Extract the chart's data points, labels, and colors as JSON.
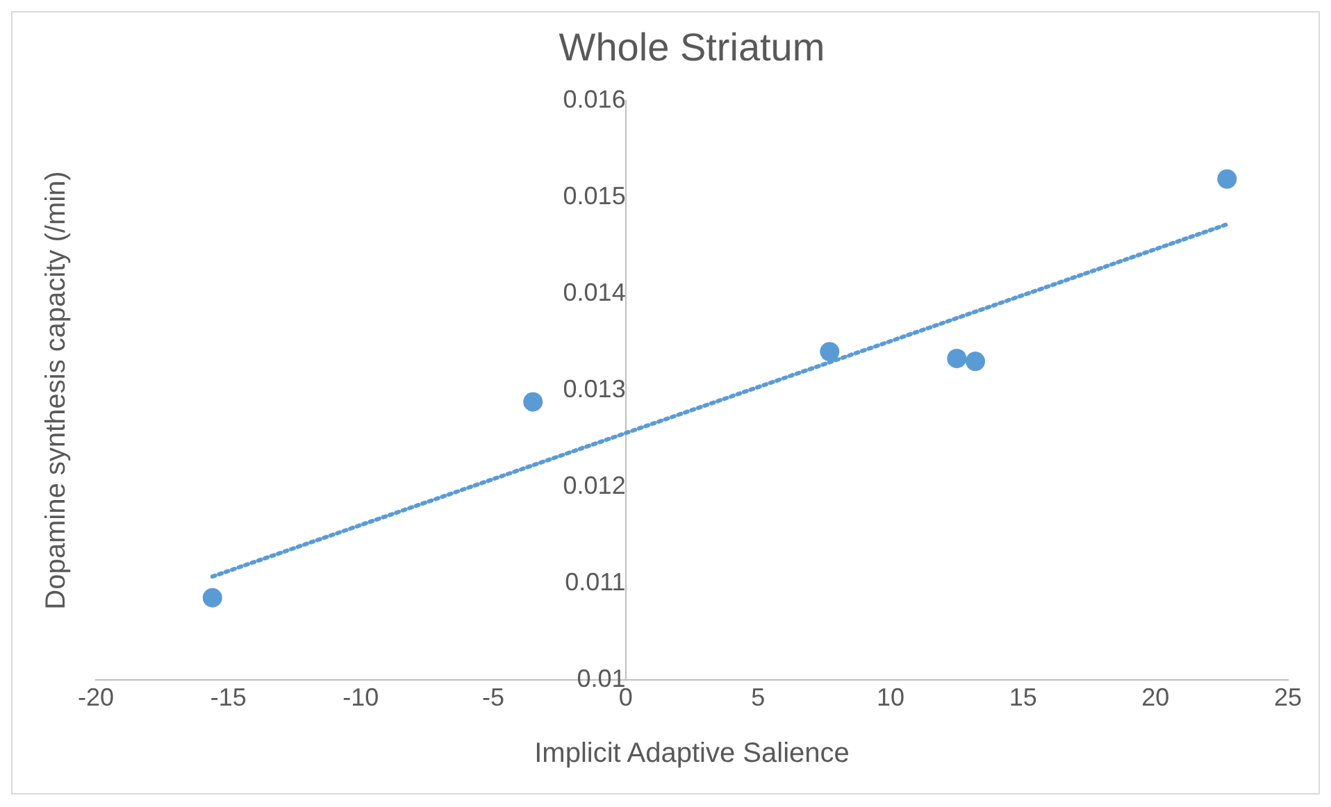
{
  "chart_data": {
    "type": "scatter",
    "title": "Whole Striatum",
    "xlabel": "Implicit Adaptive Salience",
    "ylabel": "Dopamine synthesis capacity (/min)",
    "xlim": [
      -20,
      25
    ],
    "xticks": [
      -20,
      -15,
      -10,
      -5,
      0,
      5,
      10,
      15,
      20,
      25
    ],
    "ylim": [
      0.01,
      0.016
    ],
    "yticks": [
      0.01,
      0.011,
      0.012,
      0.013,
      0.014,
      0.015,
      0.016
    ],
    "grid": false,
    "legend": false,
    "series": [
      {
        "type": "scatter",
        "color": "#5b9bd5",
        "marker": "circle",
        "x": [
          -15.6,
          -3.5,
          7.7,
          12.5,
          13.2,
          22.7
        ],
        "values": [
          0.01085,
          0.01288,
          0.0134,
          0.01333,
          0.0133,
          0.01519
        ]
      },
      {
        "type": "line",
        "color": "#5b9bd5",
        "line_style": "dotted",
        "marker": "none",
        "x": [
          -15.6,
          22.7
        ],
        "values": [
          0.01107,
          0.01472
        ]
      }
    ]
  }
}
